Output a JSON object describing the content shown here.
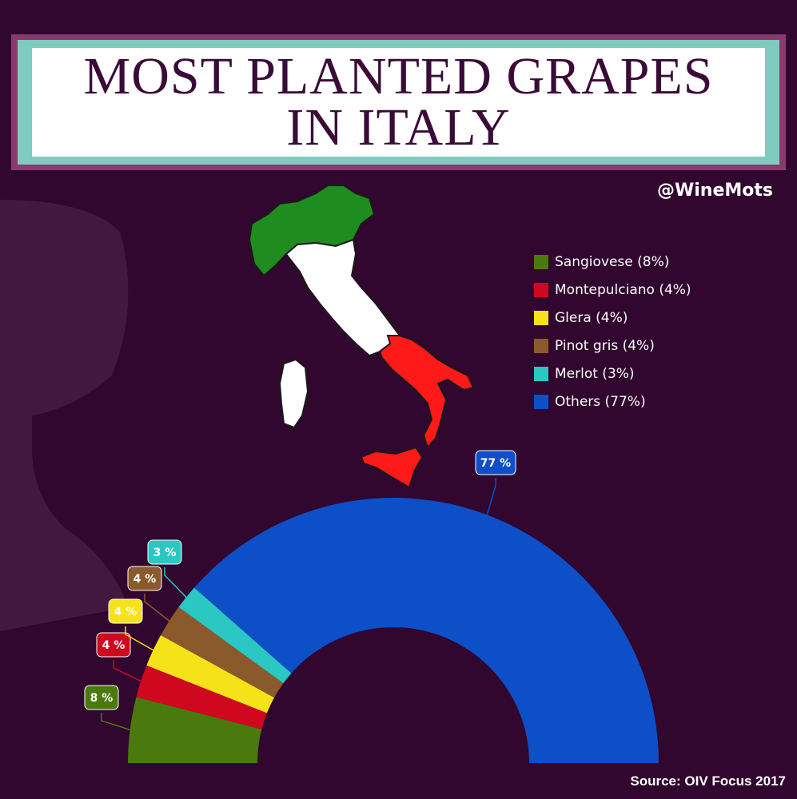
{
  "title": "MOST PLANTED GRAPES IN ITALY",
  "handle": "@WineMots",
  "source": "Source: OIV Focus 2017",
  "colors": {
    "background": "#31062f",
    "map_green": "#1e8c1e",
    "map_white": "#ffffff",
    "map_red": "#ff1a1a"
  },
  "chart_data": {
    "type": "pie",
    "style": "semi-donut",
    "legend": "right",
    "series": [
      {
        "name": "Sangiovese (8%)",
        "value": 8,
        "label": "8 %",
        "color": "#4a7a0d"
      },
      {
        "name": "Montepulciano (4%)",
        "value": 4,
        "label": "4 %",
        "color": "#d0081f"
      },
      {
        "name": "Glera (4%)",
        "value": 4,
        "label": "4 %",
        "color": "#f5e219"
      },
      {
        "name": "Pinot gris (4%)",
        "value": 4,
        "label": "4 %",
        "color": "#8a5a2d"
      },
      {
        "name": "Merlot (3%)",
        "value": 3,
        "label": "3 %",
        "color": "#2bc7c2"
      },
      {
        "name": "Others (77%)",
        "value": 77,
        "label": "77 %",
        "color": "#0d4fc7"
      }
    ]
  }
}
